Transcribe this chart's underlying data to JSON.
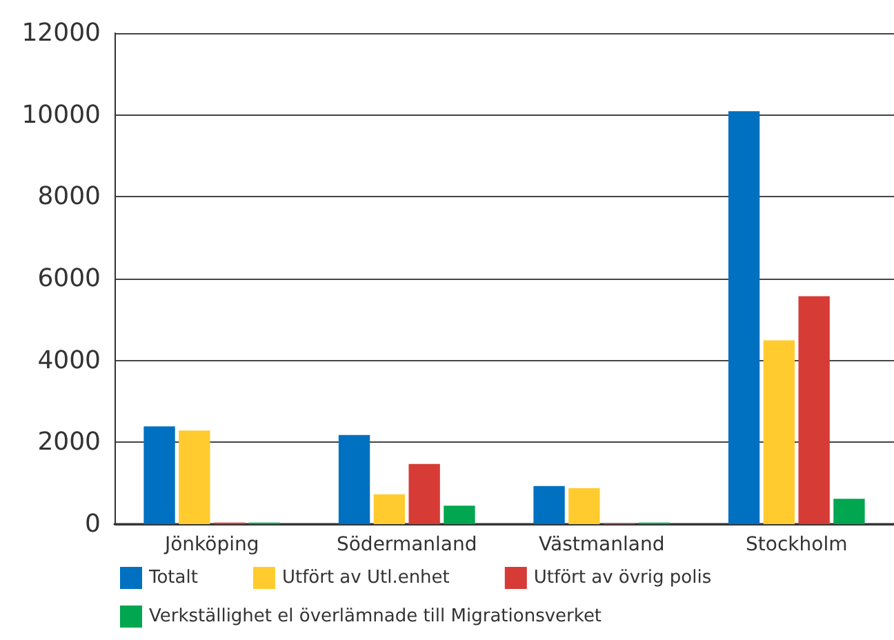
{
  "chart_data": {
    "type": "bar",
    "categories": [
      "Jönköping",
      "Södermanland",
      "Västmanland",
      "Stockholm"
    ],
    "series": [
      {
        "name": "Totalt",
        "color": "#0070c0",
        "values": [
          2390,
          2180,
          930,
          10090
        ]
      },
      {
        "name": "Utfört av Utl.enhet",
        "color": "#ffcb2f",
        "values": [
          2290,
          730,
          880,
          4490
        ]
      },
      {
        "name": "Utfört av övrig polis",
        "color": "#d63b36",
        "values": [
          40,
          1470,
          20,
          5570
        ]
      },
      {
        "name": "Verkställighet el överlämnade till Migrationsverket",
        "color": "#00a650",
        "values": [
          40,
          450,
          40,
          620
        ]
      }
    ],
    "ylim": [
      0,
      12000
    ],
    "yticks": [
      0,
      2000,
      4000,
      6000,
      8000,
      10000,
      12000
    ],
    "grid": "y",
    "legend": "bottom"
  }
}
